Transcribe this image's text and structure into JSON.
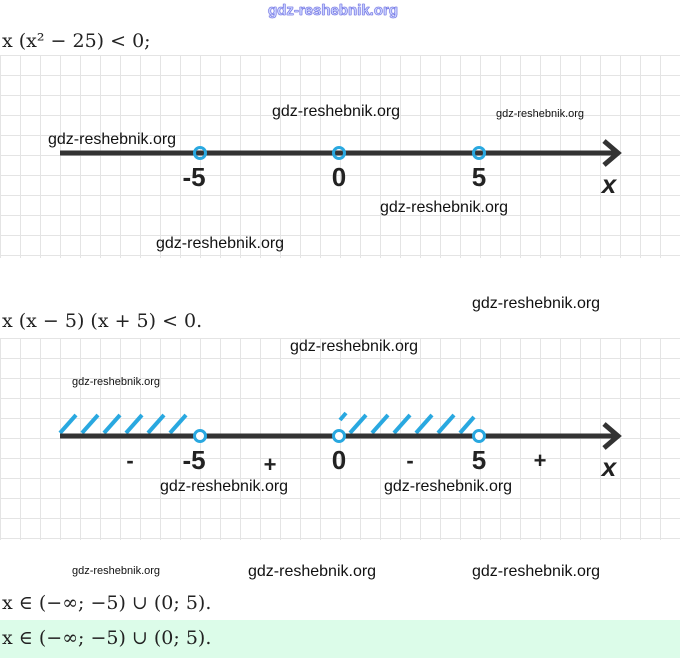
{
  "watermark": "gdz-reshebnik.org",
  "step1": {
    "inequality": "x (x² − 25)  <  0;",
    "number_line": {
      "ticks": [
        "-5",
        "0",
        "5"
      ],
      "axis_label": "x",
      "point_style": "open"
    }
  },
  "step2": {
    "inequality": "x (x − 5) (x + 5)  <  0.",
    "number_line": {
      "ticks": [
        "-5",
        "0",
        "5"
      ],
      "axis_label": "x",
      "signs": [
        "-",
        "+",
        "-",
        "+"
      ],
      "shaded_intervals": [
        "(-∞; -5)",
        "(0; 5)"
      ],
      "shade_color": "#29a8e0"
    }
  },
  "result": "x ∈ (−∞;  −5) ∪ (0;  5).",
  "answer": "x ∈ (−∞;  −5) ∪ (0;  5).",
  "colors": {
    "point": "#29a8e0",
    "axis": "#333333",
    "answer_bg": "#dcfce9"
  }
}
